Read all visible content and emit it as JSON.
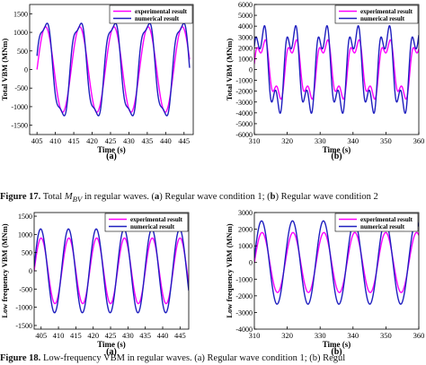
{
  "colors": {
    "experimental": "#ff00ff",
    "numerical": "#1f1fbf",
    "axis": "#000000"
  },
  "captions": {
    "fig17": {
      "label": "Figure 17.",
      "text_before": " Total ",
      "symbol": "M",
      "subscript": "BV",
      "text_after": " in regular waves. (",
      "a": "a",
      "mid": ") Regular wave condition 1; (",
      "b": "b",
      "end": ") Regular wave condition 2"
    },
    "fig18": {
      "label": "Figure 18.",
      "text": " Low-frequency VBM in regular waves. (a) Regular wave condition 1; (b) Regul"
    }
  },
  "chart_data": [
    {
      "id": "top-left",
      "panel_label": "(a)",
      "type": "line",
      "xlabel": "Time (s)",
      "ylabel": "Total VBM (MNm)",
      "xlim": [
        403,
        447.5
      ],
      "ylim": [
        -1750,
        1750
      ],
      "xticks": [
        405,
        410,
        415,
        420,
        425,
        430,
        435,
        440,
        445
      ],
      "yticks": [
        -1500,
        -1000,
        -500,
        0,
        500,
        1000,
        1500
      ],
      "period": 9.3,
      "x_first": 405.0,
      "x_last": 446.5,
      "series": [
        {
          "name": "experimental result",
          "color_key": "experimental",
          "amplitude": 1150,
          "harmonic": 0,
          "phase": 0
        },
        {
          "name": "numerical result",
          "color_key": "numerical",
          "amplitude": 1300,
          "harmonic": 200,
          "phase": 0.15
        }
      ]
    },
    {
      "id": "top-right",
      "panel_label": "(b)",
      "type": "line",
      "xlabel": "Time (s)",
      "ylabel": "Total VBM (MNm)",
      "xlim": [
        310,
        360
      ],
      "ylim": [
        -6000,
        6000
      ],
      "xticks": [
        310,
        320,
        330,
        340,
        350,
        360
      ],
      "yticks": [
        -6000,
        -5000,
        -4000,
        -3000,
        -2000,
        -1000,
        0,
        1000,
        2000,
        3000,
        4000,
        5000,
        6000
      ],
      "period": 9.5,
      "x_first": 310,
      "x_last": 360,
      "series": [
        {
          "name": "experimental result",
          "color_key": "experimental",
          "amplitude": 2500,
          "harmonic": 900,
          "phase": 0
        },
        {
          "name": "numerical result",
          "color_key": "numerical",
          "amplitude": 3500,
          "harmonic": 1500,
          "phase": 0.2
        }
      ]
    },
    {
      "id": "bottom-left",
      "panel_label": "(a)",
      "type": "line",
      "xlabel": "Time (s)",
      "ylabel": "Low frequency VBM (MNm)",
      "xlim": [
        403,
        447.5
      ],
      "ylim": [
        -1600,
        1600
      ],
      "xticks": [
        405,
        410,
        415,
        420,
        425,
        430,
        435,
        440,
        445
      ],
      "yticks": [
        -1500,
        -1000,
        -500,
        0,
        500,
        1000,
        1500
      ],
      "period": 8.0,
      "x_first": 403,
      "x_last": 447.5,
      "series": [
        {
          "name": "experimental result",
          "color_key": "experimental",
          "amplitude": 900,
          "harmonic": 0,
          "phase": 0
        },
        {
          "name": "numerical result",
          "color_key": "numerical",
          "amplitude": 1150,
          "harmonic": 0,
          "phase": 0.1
        }
      ]
    },
    {
      "id": "bottom-right",
      "panel_label": "(b)",
      "type": "line",
      "xlabel": "Time (s)",
      "ylabel": "Low frequency VBM (MNm)",
      "xlim": [
        310,
        360
      ],
      "ylim": [
        -4000,
        3000
      ],
      "xticks": [
        310,
        320,
        330,
        340,
        350,
        360
      ],
      "yticks": [
        -4000,
        -3000,
        -2000,
        -1000,
        0,
        1000,
        2000,
        3000
      ],
      "period": 9.4,
      "x_first": 310,
      "x_last": 360,
      "series": [
        {
          "name": "experimental result",
          "color_key": "experimental",
          "amplitude": 1800,
          "harmonic": 0,
          "phase": 0
        },
        {
          "name": "numerical result",
          "color_key": "numerical",
          "amplitude": 2500,
          "harmonic": 0,
          "phase": 0.1
        }
      ]
    }
  ]
}
